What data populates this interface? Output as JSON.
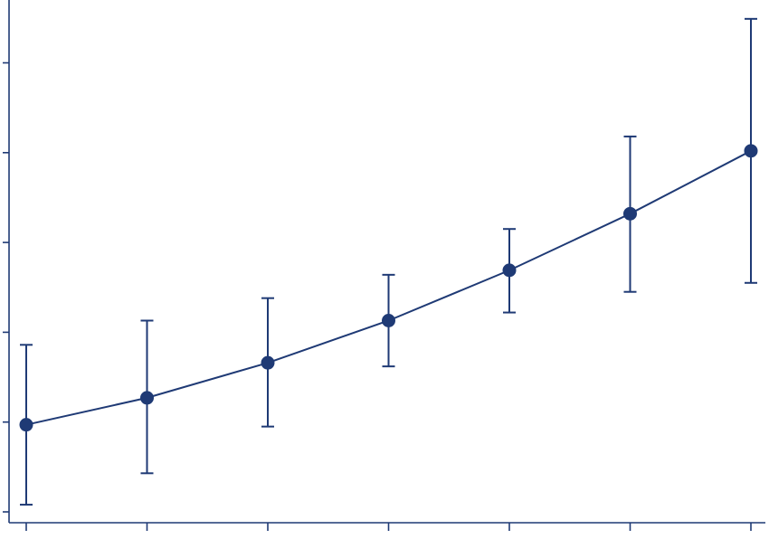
{
  "chart_data": {
    "type": "line",
    "title": "",
    "xlabel": "",
    "ylabel": "",
    "x": [
      1,
      2,
      3,
      4,
      5,
      6,
      7
    ],
    "y_ticks": [
      0,
      1,
      2,
      3,
      4,
      5
    ],
    "xlim": [
      1,
      7
    ],
    "ylim": [
      0,
      5.5
    ],
    "grid": false,
    "series": [
      {
        "values": [
          0.97,
          1.27,
          1.66,
          2.13,
          2.69,
          3.32,
          4.02
        ],
        "lower": [
          0.08,
          0.43,
          0.95,
          1.62,
          2.22,
          2.45,
          2.55
        ],
        "upper": [
          1.86,
          2.13,
          2.38,
          2.64,
          3.15,
          4.18,
          5.49
        ]
      }
    ],
    "colors": {
      "series": "#1f3a75",
      "axis": "#1f3a75",
      "background": "#ffffff"
    }
  }
}
